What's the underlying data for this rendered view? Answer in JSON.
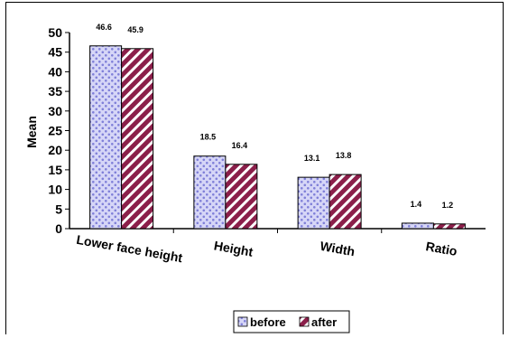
{
  "chart_data": {
    "type": "bar",
    "title": "",
    "xlabel": "",
    "ylabel": "Mean",
    "ylim": [
      0,
      50
    ],
    "yticks": [
      "0",
      "5",
      "10",
      "15",
      "20",
      "25",
      "30",
      "35",
      "40",
      "45",
      "50"
    ],
    "categories": [
      "Lower face height",
      "Height",
      "Width",
      "Ratio"
    ],
    "series": [
      {
        "name": "before",
        "values": [
          46.6,
          18.5,
          13.1,
          1.4
        ],
        "labels": [
          "46.6",
          "18.5",
          "13.1",
          "1.4"
        ],
        "color": "#c8c8f4",
        "pattern": "dots"
      },
      {
        "name": "after",
        "values": [
          45.9,
          16.4,
          13.8,
          1.2
        ],
        "labels": [
          "45.9",
          "16.4",
          "13.8",
          "1.2"
        ],
        "color": "#8b1f4a",
        "pattern": "diagonal-stripes"
      }
    ],
    "grid": false,
    "legend": "bottom"
  }
}
